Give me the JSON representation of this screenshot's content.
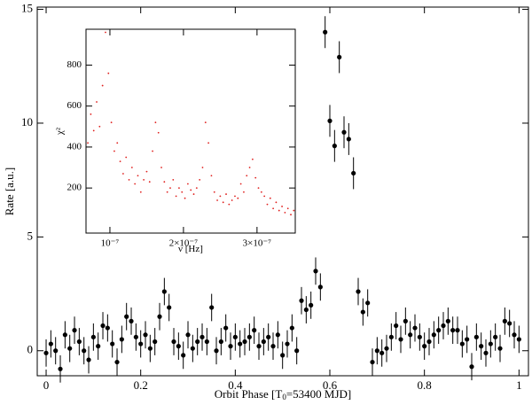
{
  "chart_data": [
    {
      "type": "scatter",
      "ylabel": "Rate [a.u.]",
      "xlabel": {
        "text": "Orbit Phase [T",
        "subscript": "0",
        "text_after": "=53400 MJD]"
      },
      "xlim": [
        -0.0188,
        1.02
      ],
      "ylim": [
        -1.1,
        15.1
      ],
      "xticks": [
        0,
        0.2,
        0.4,
        0.6,
        0.8,
        1
      ],
      "yticks": [
        0,
        5,
        10,
        15
      ],
      "series": [
        {
          "color": "#000000",
          "x": [
            0,
            0.01,
            0.02,
            0.03,
            0.04,
            0.05,
            0.06,
            0.07,
            0.08,
            0.09,
            0.1,
            0.11,
            0.12,
            0.13,
            0.14,
            0.15,
            0.16,
            0.17,
            0.18,
            0.19,
            0.2,
            0.21,
            0.22,
            0.23,
            0.24,
            0.25,
            0.26,
            0.27,
            0.28,
            0.29,
            0.3,
            0.31,
            0.32,
            0.33,
            0.34,
            0.35,
            0.36,
            0.37,
            0.38,
            0.39,
            0.4,
            0.41,
            0.42,
            0.43,
            0.44,
            0.45,
            0.46,
            0.47,
            0.48,
            0.49,
            0.5,
            0.51,
            0.52,
            0.53,
            0.54,
            0.55,
            0.56,
            0.57,
            0.58,
            0.59,
            0.6,
            0.61,
            0.62,
            0.63,
            0.64,
            0.65,
            0.66,
            0.67,
            0.68,
            0.69,
            0.7,
            0.71,
            0.72,
            0.73,
            0.74,
            0.75,
            0.76,
            0.77,
            0.78,
            0.79,
            0.8,
            0.81,
            0.82,
            0.83,
            0.84,
            0.85,
            0.86,
            0.87,
            0.88,
            0.89,
            0.9,
            0.91,
            0.92,
            0.93,
            0.94,
            0.95,
            0.96,
            0.97,
            0.98,
            0.99,
            1
          ],
          "values": [
            -0.1,
            0.3,
            0.0,
            -0.8,
            0.7,
            0.1,
            0.9,
            0.4,
            0.0,
            -0.4,
            0.6,
            0.2,
            1.1,
            1.0,
            0.3,
            -0.5,
            0.5,
            1.5,
            1.3,
            0.6,
            0.3,
            0.7,
            0.1,
            0.4,
            1.5,
            2.6,
            1.9,
            0.4,
            0.2,
            -0.2,
            0.7,
            0.1,
            0.4,
            0.6,
            0.4,
            1.9,
            0.0,
            0.4,
            1.0,
            0.2,
            0.6,
            0.3,
            0.4,
            0.6,
            0.9,
            0.2,
            0.4,
            0.6,
            0.2,
            0.7,
            -0.2,
            0.3,
            1.0,
            0.0,
            2.2,
            1.8,
            2.0,
            3.5,
            2.8,
            14.0,
            10.1,
            9.0,
            12.9,
            9.6,
            9.3,
            7.8,
            2.6,
            1.7,
            2.1,
            -0.5,
            0.0,
            -0.1,
            0.1,
            0.6,
            1.1,
            0.5,
            1.3,
            0.7,
            1.0,
            0.6,
            0.2,
            0.4,
            0.7,
            0.9,
            1.1,
            1.3,
            0.9,
            0.9,
            0.3,
            0.5,
            -0.7,
            0.6,
            0.2,
            -0.1,
            0.3,
            0.6,
            0.1,
            1.3,
            1.2,
            0.7,
            0.5
          ],
          "errors": [
            0.6,
            0.6,
            0.6,
            0.6,
            0.6,
            0.6,
            0.6,
            0.6,
            0.6,
            0.6,
            0.6,
            0.6,
            0.6,
            0.6,
            0.6,
            0.6,
            0.6,
            0.6,
            0.6,
            0.6,
            0.6,
            0.6,
            0.6,
            0.6,
            0.6,
            0.6,
            0.6,
            0.6,
            0.6,
            0.6,
            0.6,
            0.6,
            0.6,
            0.6,
            0.6,
            0.6,
            0.6,
            0.6,
            0.6,
            0.6,
            0.6,
            0.6,
            0.6,
            0.6,
            0.6,
            0.6,
            0.6,
            0.6,
            0.6,
            0.6,
            0.6,
            0.6,
            0.6,
            0.6,
            0.6,
            0.6,
            0.6,
            0.6,
            0.6,
            0.7,
            0.7,
            0.7,
            0.7,
            0.7,
            0.7,
            0.7,
            0.6,
            0.6,
            0.6,
            0.6,
            0.6,
            0.6,
            0.6,
            0.6,
            0.6,
            0.6,
            0.6,
            0.6,
            0.6,
            0.6,
            0.6,
            0.6,
            0.6,
            0.6,
            0.6,
            0.6,
            0.6,
            0.6,
            0.6,
            0.6,
            0.6,
            0.6,
            0.6,
            0.6,
            0.6,
            0.6,
            0.6,
            0.6,
            0.6,
            0.6,
            0.6
          ]
        }
      ]
    },
    {
      "type": "scatter",
      "xlabel": {
        "text": "ν [Hz]"
      },
      "ylabel": "χ²",
      "xlim": [
        6.75e-08,
        3.52e-07
      ],
      "ylim": [
        -20,
        975
      ],
      "xticks": [
        {
          "value": 1e-07,
          "label": "10⁻⁷"
        },
        {
          "value": 2e-07,
          "label": "2×10⁻⁷"
        },
        {
          "value": 3e-07,
          "label": "3×10⁻⁷"
        }
      ],
      "yticks": [
        200,
        400,
        600,
        800
      ],
      "series": [
        {
          "color": "#e0201e",
          "x": [
            7e-08,
            7.4e-08,
            7.8e-08,
            8.2e-08,
            8.6e-08,
            9e-08,
            9.4e-08,
            9.8e-08,
            1.02e-07,
            1.06e-07,
            1.1e-07,
            1.14e-07,
            1.18e-07,
            1.22e-07,
            1.26e-07,
            1.3e-07,
            1.34e-07,
            1.38e-07,
            1.42e-07,
            1.46e-07,
            1.5e-07,
            1.54e-07,
            1.58e-07,
            1.62e-07,
            1.66e-07,
            1.7e-07,
            1.74e-07,
            1.78e-07,
            1.82e-07,
            1.86e-07,
            1.9e-07,
            1.94e-07,
            1.98e-07,
            2.02e-07,
            2.06e-07,
            2.1e-07,
            2.14e-07,
            2.18e-07,
            2.22e-07,
            2.26e-07,
            2.3e-07,
            2.34e-07,
            2.38e-07,
            2.42e-07,
            2.46e-07,
            2.5e-07,
            2.54e-07,
            2.58e-07,
            2.62e-07,
            2.66e-07,
            2.7e-07,
            2.74e-07,
            2.78e-07,
            2.82e-07,
            2.86e-07,
            2.9e-07,
            2.94e-07,
            2.98e-07,
            3.02e-07,
            3.06e-07,
            3.1e-07,
            3.14e-07,
            3.18e-07,
            3.22e-07,
            3.26e-07,
            3.3e-07,
            3.34e-07,
            3.38e-07,
            3.42e-07,
            3.46e-07,
            3.5e-07
          ],
          "values": [
            420,
            560,
            480,
            620,
            500,
            700,
            960,
            760,
            520,
            380,
            420,
            330,
            270,
            350,
            240,
            300,
            220,
            260,
            180,
            240,
            280,
            230,
            380,
            520,
            470,
            300,
            230,
            180,
            200,
            240,
            160,
            200,
            180,
            150,
            220,
            190,
            170,
            200,
            240,
            300,
            520,
            420,
            260,
            180,
            140,
            160,
            130,
            170,
            120,
            140,
            160,
            150,
            220,
            180,
            260,
            300,
            340,
            250,
            200,
            180,
            160,
            120,
            150,
            100,
            130,
            90,
            110,
            80,
            100,
            70,
            90
          ]
        }
      ]
    }
  ]
}
